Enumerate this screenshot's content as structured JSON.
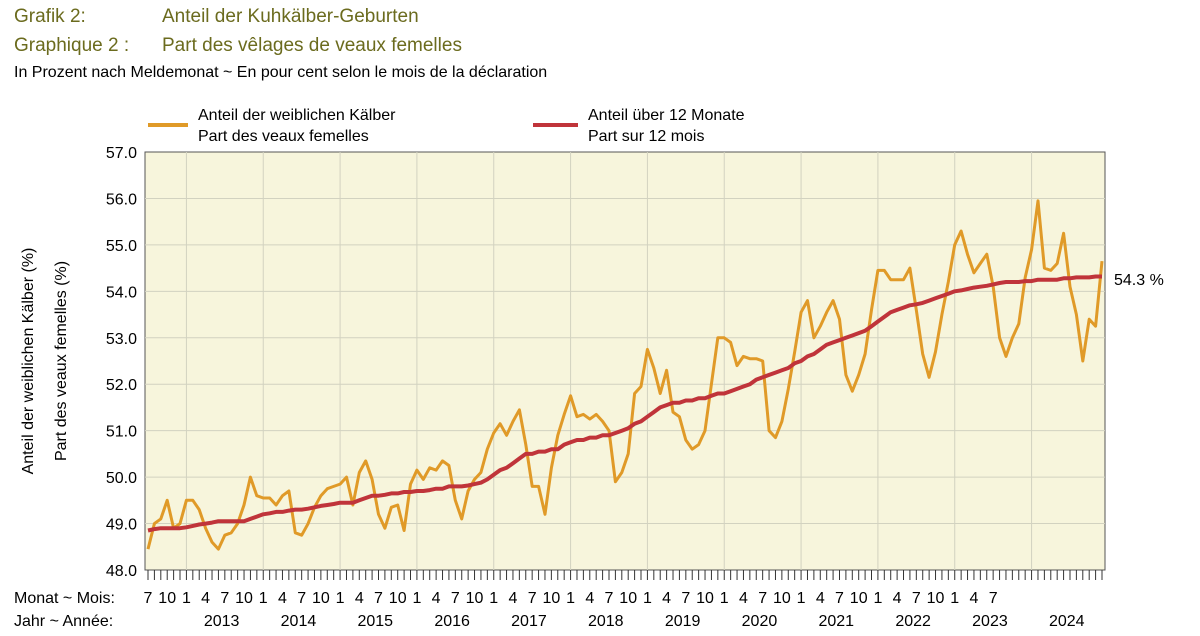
{
  "header": {
    "title_de_num": "Grafik 2:",
    "title_de": "Anteil der Kuhkälber-Geburten",
    "title_fr_num": "Graphique 2 :",
    "title_fr": "Part des vêlages de veaux femelles",
    "subtitle": "In Prozent nach Meldemonat   ~   En pour cent selon le mois de la déclaration"
  },
  "colors": {
    "monthly": "#e09a28",
    "rolling": "#c0343a",
    "plot_bg": "#f7f5dc",
    "grid": "#d2d2c0"
  },
  "chart_data": {
    "type": "line",
    "title": "Anteil der Kuhkälber-Geburten / Part des vêlages de veaux femelles",
    "ylabel_de": "Anteil der weiblichen Kälber (%)",
    "ylabel_fr": "Part des veaux femelles (%)",
    "xaxis_month_label": "Monat ~ Mois:",
    "xaxis_year_label": "Jahr ~ Année:",
    "ylim": [
      48.0,
      57.0
    ],
    "y_ticks": [
      "48.0",
      "49.0",
      "50.0",
      "51.0",
      "52.0",
      "53.0",
      "54.0",
      "55.0",
      "56.0",
      "57.0"
    ],
    "month_tick_labels": [
      "7",
      "10",
      "1",
      "4",
      "7",
      "10",
      "1",
      "4",
      "7",
      "10",
      "1",
      "4",
      "7",
      "10",
      "1",
      "4",
      "7",
      "10",
      "1",
      "4",
      "7",
      "10",
      "1",
      "4",
      "7",
      "10",
      "1",
      "4",
      "7",
      "10",
      "1",
      "4",
      "7",
      "10",
      "1",
      "4",
      "7",
      "10",
      "1",
      "4",
      "7",
      "10",
      "1",
      "4",
      "7"
    ],
    "years": [
      "2013",
      "2014",
      "2015",
      "2016",
      "2017",
      "2018",
      "2019",
      "2020",
      "2021",
      "2022",
      "2023",
      "2024"
    ],
    "grid": true,
    "legend_position": "top",
    "x_start": "2012-07",
    "x_end": "2024-07",
    "series": [
      {
        "name": "Anteil der weiblichen Kälber / Part des veaux femelles",
        "name_line1": "Anteil der weiblichen Kälber",
        "name_line2": "Part des veaux femelles",
        "values": [
          48.45,
          49.0,
          49.1,
          49.5,
          48.9,
          49.0,
          49.5,
          49.5,
          49.3,
          48.9,
          48.6,
          48.45,
          48.75,
          48.8,
          49.0,
          49.4,
          50.0,
          49.6,
          49.55,
          49.55,
          49.4,
          49.6,
          49.7,
          48.8,
          48.75,
          49.0,
          49.35,
          49.6,
          49.75,
          49.8,
          49.85,
          50.0,
          49.4,
          50.1,
          50.35,
          49.95,
          49.2,
          48.9,
          49.35,
          49.4,
          48.85,
          49.85,
          50.15,
          49.95,
          50.2,
          50.15,
          50.35,
          50.25,
          49.5,
          49.1,
          49.7,
          49.95,
          50.1,
          50.6,
          50.95,
          51.15,
          50.9,
          51.2,
          51.45,
          50.7,
          49.8,
          49.8,
          49.2,
          50.2,
          50.9,
          51.35,
          51.75,
          51.3,
          51.35,
          51.25,
          51.35,
          51.2,
          51.0,
          49.9,
          50.1,
          50.5,
          51.8,
          51.95,
          52.75,
          52.35,
          51.8,
          52.3,
          51.4,
          51.3,
          50.8,
          50.6,
          50.7,
          51.0,
          52.0,
          53.0,
          53.0,
          52.9,
          52.4,
          52.6,
          52.55,
          52.55,
          52.5,
          51.0,
          50.85,
          51.2,
          51.9,
          52.7,
          53.55,
          53.8,
          53.0,
          53.25,
          53.55,
          53.8,
          53.4,
          52.2,
          51.85,
          52.2,
          52.65,
          53.6,
          54.45,
          54.45,
          54.25,
          54.25,
          54.25,
          54.5,
          53.6,
          52.65,
          52.15,
          52.7,
          53.5,
          54.2,
          55.0,
          55.3,
          54.8,
          54.4,
          54.6,
          54.8,
          54.1,
          53.0,
          52.6,
          53.0,
          53.3,
          54.3,
          54.9,
          55.95,
          54.5,
          54.45,
          54.6,
          55.25,
          54.1,
          53.5,
          52.5,
          53.4,
          53.25,
          54.65
        ]
      },
      {
        "name": "Anteil über 12 Monate / Part sur 12 mois",
        "name_line1": "Anteil über 12 Monate",
        "name_line2": "Part sur 12 mois",
        "end_label": "54.3 %",
        "values": [
          48.85,
          48.88,
          48.9,
          48.9,
          48.9,
          48.9,
          48.92,
          48.95,
          48.98,
          49.0,
          49.02,
          49.05,
          49.05,
          49.05,
          49.05,
          49.05,
          49.1,
          49.15,
          49.2,
          49.22,
          49.25,
          49.25,
          49.28,
          49.3,
          49.3,
          49.32,
          49.35,
          49.38,
          49.4,
          49.42,
          49.45,
          49.45,
          49.45,
          49.5,
          49.55,
          49.6,
          49.6,
          49.62,
          49.65,
          49.65,
          49.68,
          49.68,
          49.7,
          49.7,
          49.72,
          49.75,
          49.75,
          49.8,
          49.8,
          49.8,
          49.82,
          49.85,
          49.88,
          49.95,
          50.05,
          50.15,
          50.2,
          50.3,
          50.4,
          50.5,
          50.5,
          50.55,
          50.55,
          50.6,
          50.6,
          50.7,
          50.75,
          50.8,
          50.8,
          50.85,
          50.85,
          50.9,
          50.9,
          50.95,
          51.0,
          51.05,
          51.15,
          51.2,
          51.3,
          51.4,
          51.5,
          51.55,
          51.6,
          51.6,
          51.65,
          51.65,
          51.7,
          51.7,
          51.75,
          51.8,
          51.8,
          51.85,
          51.9,
          51.95,
          52.0,
          52.1,
          52.15,
          52.2,
          52.25,
          52.3,
          52.35,
          52.45,
          52.5,
          52.6,
          52.65,
          52.75,
          52.85,
          52.9,
          52.95,
          53.0,
          53.05,
          53.1,
          53.15,
          53.25,
          53.35,
          53.45,
          53.55,
          53.6,
          53.65,
          53.7,
          53.72,
          53.75,
          53.8,
          53.85,
          53.9,
          53.95,
          54.0,
          54.02,
          54.05,
          54.08,
          54.1,
          54.12,
          54.15,
          54.18,
          54.2,
          54.2,
          54.2,
          54.22,
          54.22,
          54.25,
          54.25,
          54.25,
          54.25,
          54.28,
          54.28,
          54.3,
          54.3,
          54.3,
          54.32,
          54.32
        ]
      }
    ]
  }
}
